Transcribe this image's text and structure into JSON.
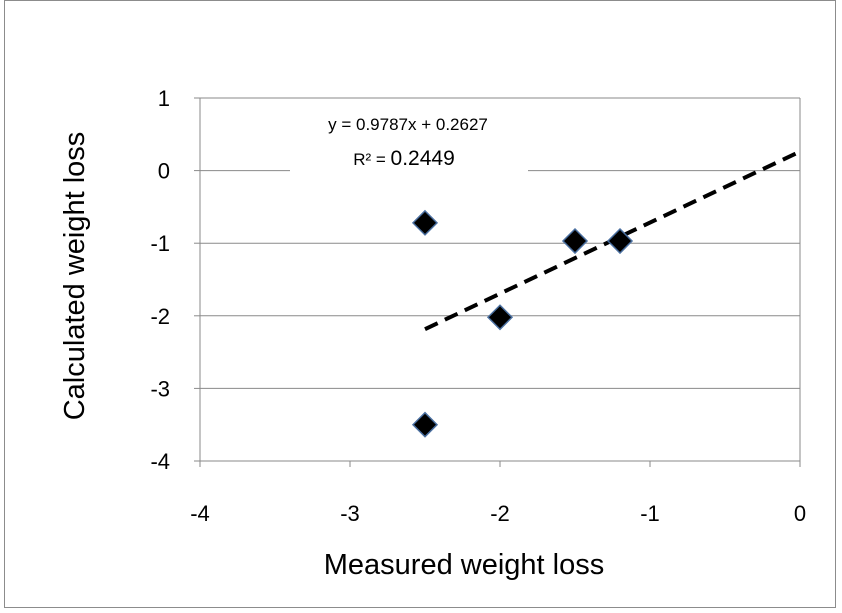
{
  "chart_data": {
    "type": "scatter",
    "xlabel": "Measured weight loss",
    "ylabel": "Calculated weight loss",
    "xlim": [
      -4,
      0
    ],
    "ylim": [
      -4,
      1
    ],
    "xticks": [
      "-4",
      "-3",
      "-2",
      "-1",
      "0"
    ],
    "yticks": [
      "1",
      "0",
      "-1",
      "-2",
      "-3",
      "-4"
    ],
    "grid": "horizontal",
    "marker_color": "#000000",
    "points": [
      {
        "x": -2.5,
        "y": -0.72
      },
      {
        "x": -2.5,
        "y": -3.5
      },
      {
        "x": -2.0,
        "y": -2.02
      },
      {
        "x": -1.5,
        "y": -0.97
      },
      {
        "x": -1.2,
        "y": -0.97
      }
    ],
    "trendline": {
      "slope": 0.9787,
      "intercept": 0.2627,
      "x_range": [
        -2.5,
        0
      ],
      "style": "dashed",
      "equation": "y = 0.9787x + 0.2627",
      "r2_label": "R² = ",
      "r2_value": "0.2449"
    }
  }
}
